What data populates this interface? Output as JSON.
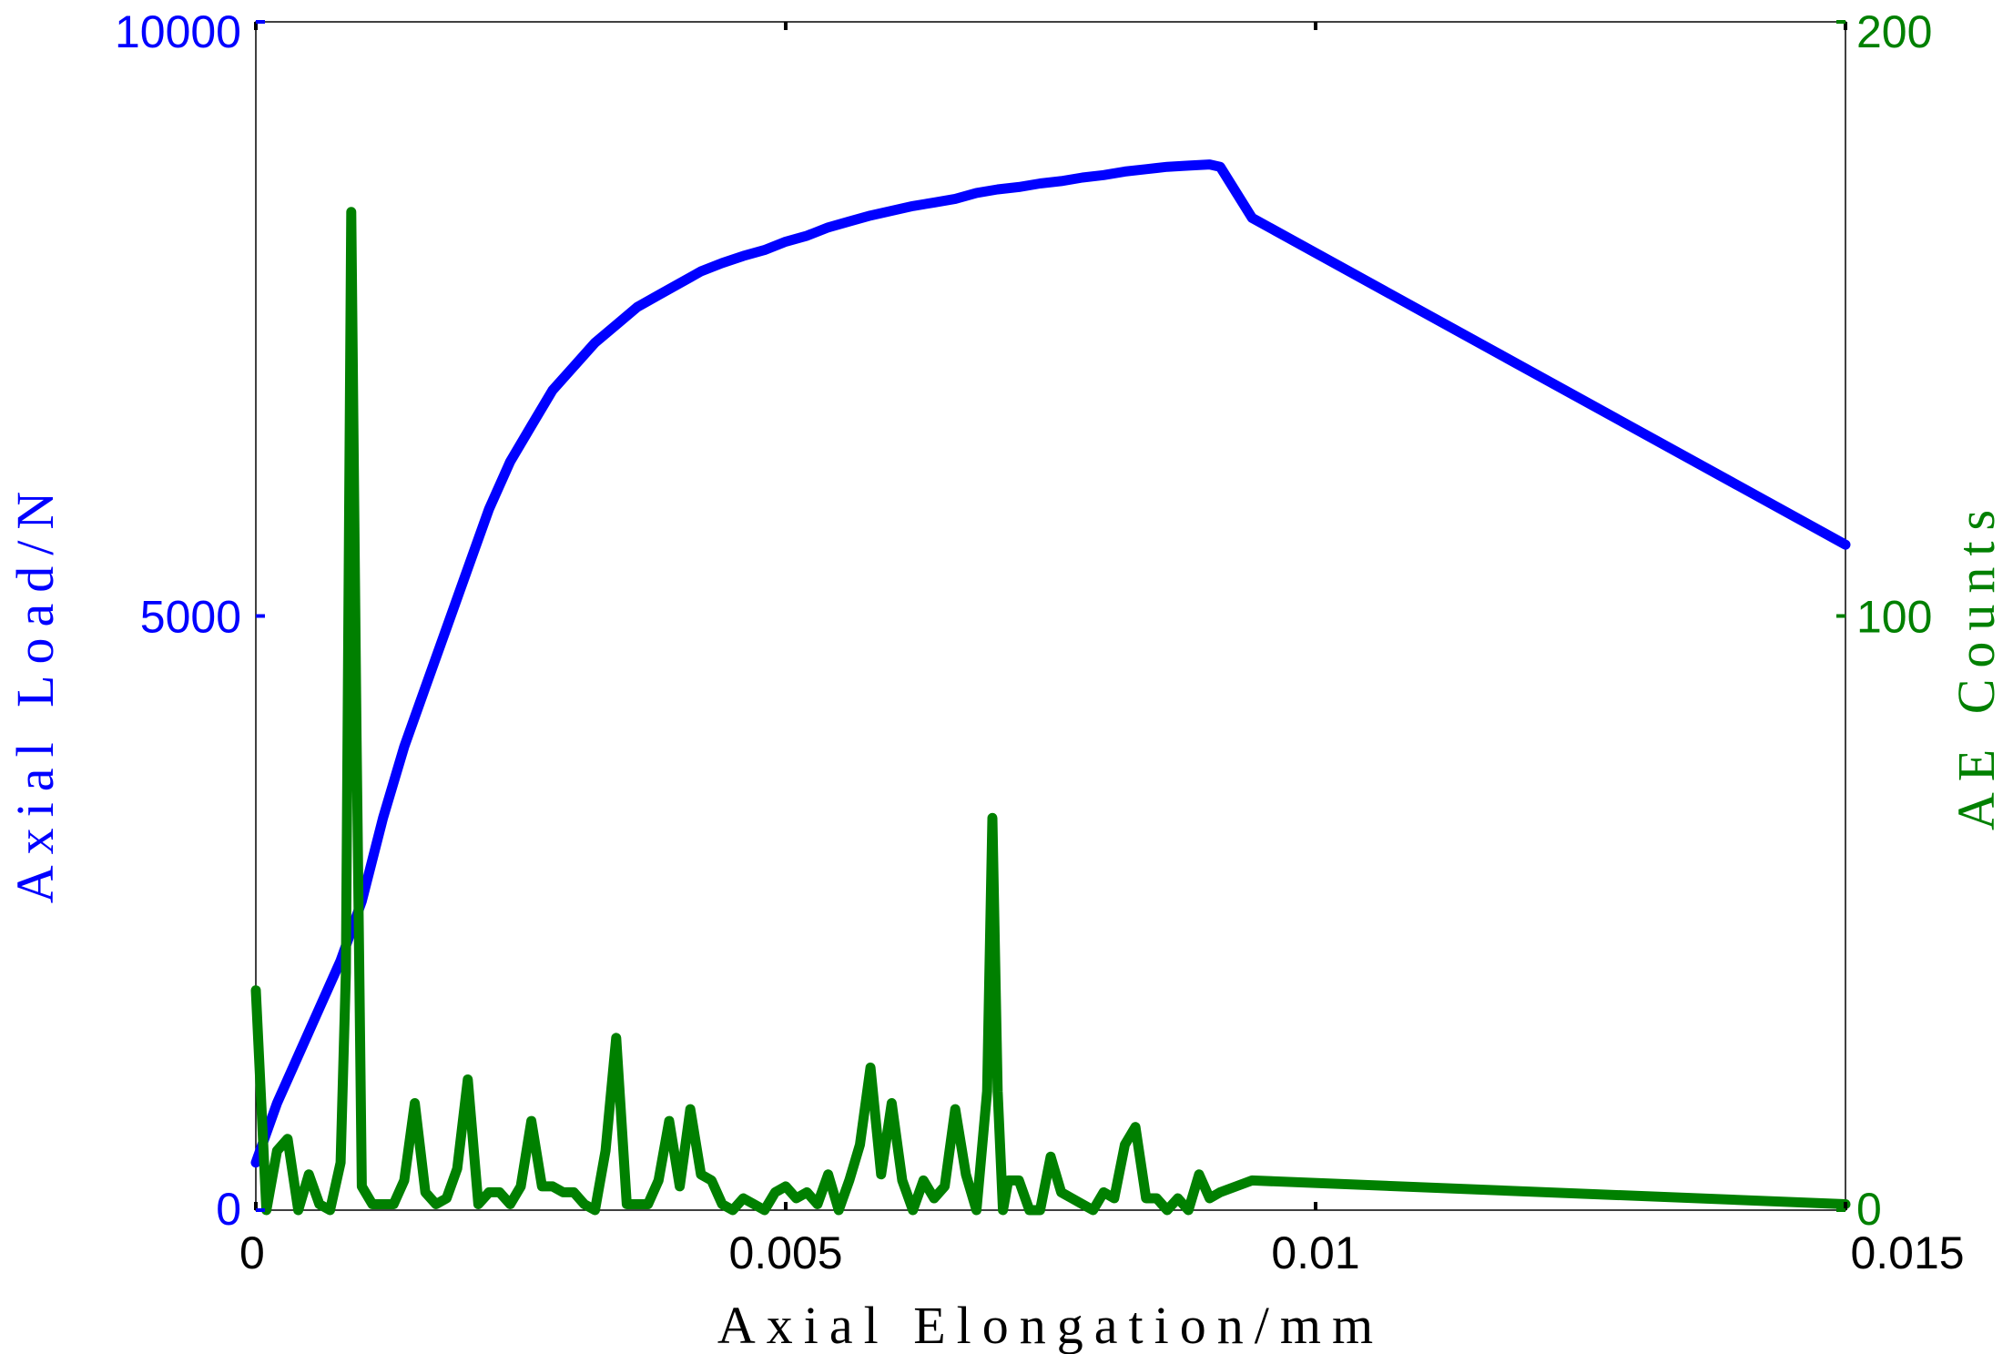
{
  "chart_data": {
    "type": "line",
    "xlabel": "Axial Elongation/mm",
    "ylabel_left": "Axial Load/N",
    "ylabel_right": "AE Counts",
    "xlim": [
      0,
      0.015
    ],
    "ylim_left": [
      0,
      10000
    ],
    "ylim_right": [
      0,
      200
    ],
    "x_ticks": [
      "0",
      "0.005",
      "0.01",
      "0.015"
    ],
    "x_tick_values": [
      0,
      0.005,
      0.01,
      0.015
    ],
    "y_left_ticks": [
      "0",
      "5000",
      "10000"
    ],
    "y_left_tick_values": [
      0,
      5000,
      10000
    ],
    "y_right_ticks": [
      "0",
      "100",
      "200"
    ],
    "y_right_tick_values": [
      0,
      100,
      200
    ],
    "grid": false,
    "series": [
      {
        "axis": "left",
        "color": "#0000ff",
        "x": [
          0,
          0.0002,
          0.0004,
          0.0006,
          0.0008,
          0.001,
          0.0012,
          0.0014,
          0.0016,
          0.0018,
          0.002,
          0.0022,
          0.0024,
          0.0026,
          0.0028,
          0.003,
          0.0032,
          0.0034,
          0.0036,
          0.0038,
          0.004,
          0.0042,
          0.0044,
          0.0046,
          0.0048,
          0.005,
          0.0052,
          0.0054,
          0.0056,
          0.0058,
          0.006,
          0.0062,
          0.0064,
          0.0066,
          0.0068,
          0.007,
          0.0072,
          0.0074,
          0.0076,
          0.0078,
          0.008,
          0.0082,
          0.0084,
          0.0086,
          0.0088,
          0.009,
          0.0091,
          0.0094,
          0.015
        ],
        "values": [
          400,
          900,
          1300,
          1700,
          2100,
          2600,
          3300,
          3900,
          4400,
          4900,
          5400,
          5900,
          6300,
          6600,
          6900,
          7100,
          7300,
          7450,
          7600,
          7700,
          7800,
          7900,
          7970,
          8030,
          8080,
          8150,
          8200,
          8270,
          8320,
          8370,
          8410,
          8450,
          8480,
          8510,
          8560,
          8590,
          8610,
          8640,
          8660,
          8690,
          8710,
          8740,
          8760,
          8780,
          8790,
          8800,
          8780,
          8350,
          5600
        ]
      },
      {
        "axis": "right",
        "color": "#008000",
        "x": [
          0,
          0.0001,
          0.0002,
          0.0003,
          0.0004,
          0.0005,
          0.0006,
          0.0007,
          0.0008,
          0.00085,
          0.0009,
          0.00095,
          0.001,
          0.0011,
          0.0012,
          0.0013,
          0.0014,
          0.0015,
          0.0016,
          0.0017,
          0.0018,
          0.0019,
          0.002,
          0.0021,
          0.0022,
          0.0023,
          0.0024,
          0.0025,
          0.0026,
          0.0027,
          0.0028,
          0.0029,
          0.003,
          0.0031,
          0.0032,
          0.0033,
          0.0034,
          0.0035,
          0.0036,
          0.0037,
          0.0038,
          0.0039,
          0.004,
          0.0041,
          0.0042,
          0.0043,
          0.0044,
          0.0045,
          0.0046,
          0.0047,
          0.0048,
          0.0049,
          0.005,
          0.0051,
          0.0052,
          0.0053,
          0.0054,
          0.0055,
          0.0056,
          0.0057,
          0.0058,
          0.0059,
          0.006,
          0.0061,
          0.0062,
          0.0063,
          0.0064,
          0.0065,
          0.0066,
          0.0067,
          0.0068,
          0.0069,
          0.00695,
          0.007,
          0.00705,
          0.0071,
          0.0072,
          0.0073,
          0.0074,
          0.0075,
          0.0076,
          0.0077,
          0.0078,
          0.0079,
          0.008,
          0.0081,
          0.0082,
          0.0083,
          0.0084,
          0.0085,
          0.0086,
          0.0087,
          0.0088,
          0.0089,
          0.009,
          0.0091,
          0.0094,
          0.015
        ],
        "values": [
          37,
          0,
          10,
          12,
          0,
          6,
          1,
          0,
          8,
          40,
          168,
          80,
          4,
          1,
          1,
          1,
          5,
          18,
          3,
          1,
          2,
          7,
          22,
          1,
          3,
          3,
          1,
          4,
          15,
          4,
          4,
          3,
          3,
          1,
          0,
          10,
          29,
          1,
          1,
          1,
          5,
          15,
          4,
          17,
          6,
          5,
          1,
          0,
          2,
          1,
          0,
          3,
          4,
          2,
          3,
          1,
          6,
          0,
          5,
          11,
          24,
          6,
          18,
          5,
          0,
          5,
          2,
          4,
          17,
          6,
          0,
          20,
          66,
          20,
          0,
          5,
          5,
          0,
          0,
          9,
          3,
          2,
          1,
          0,
          3,
          2,
          11,
          14,
          2,
          2,
          0,
          2,
          0,
          6,
          2,
          3,
          5,
          1
        ]
      }
    ]
  }
}
